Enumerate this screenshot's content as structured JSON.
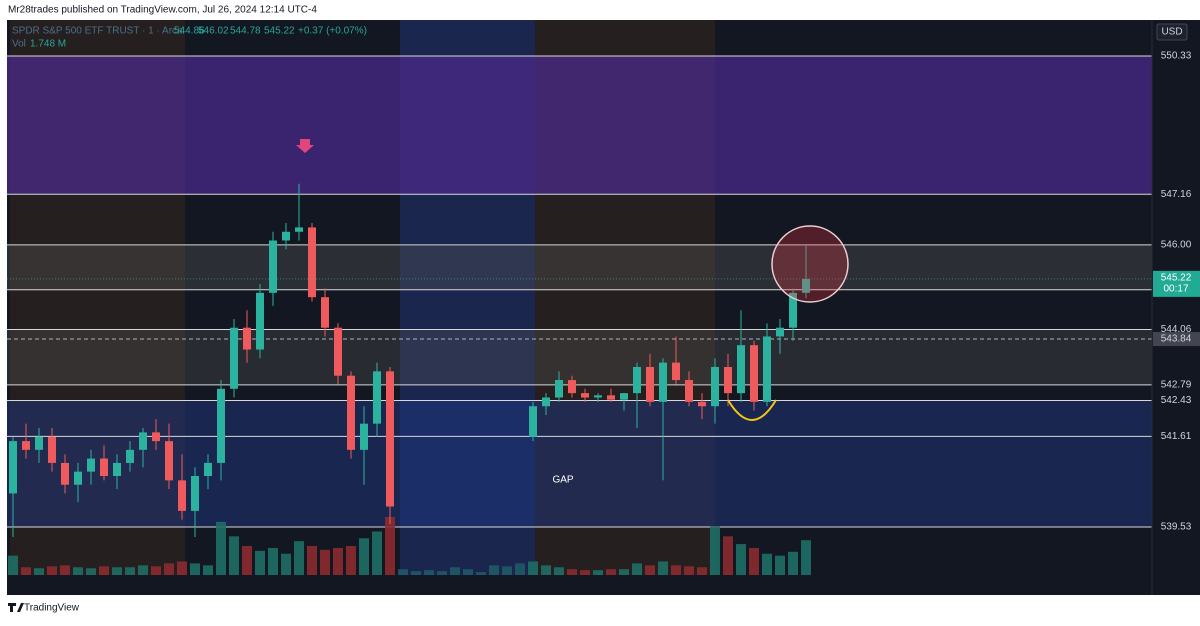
{
  "header": {
    "publisher": "Mr28trades published on TradingView.com, Jul 26, 2024 12:14 UTC-4"
  },
  "chart_data": {
    "type": "candlestick",
    "symbol": "SPDR S&P 500 ETF TRUST · 1 · Arca",
    "ohlc_values": [
      544.86,
      546.02,
      544.78,
      545.22
    ],
    "change": "+0.37 (+0.07%)",
    "volume_label": "Vol",
    "volume_total": "1.748 M",
    "currency": "USD",
    "open": [
      540.3,
      541.5,
      541.3,
      541.6,
      541.0,
      540.5,
      540.8,
      541.1,
      540.7,
      541.0,
      541.3,
      541.7,
      541.5,
      540.6,
      539.9,
      540.7,
      541.0,
      542.7,
      544.1,
      543.6,
      544.9,
      546.1,
      546.3,
      546.4,
      544.8,
      544.1,
      543.0,
      541.3,
      541.9,
      543.1,
      null,
      null,
      null,
      null,
      null,
      null,
      null,
      null,
      null,
      null,
      541.6,
      542.3,
      542.5,
      542.9,
      542.6,
      542.5,
      542.55,
      542.45,
      542.6,
      543.2,
      542.4,
      543.3,
      542.9,
      542.4,
      542.3,
      543.2,
      542.6,
      543.7,
      542.4,
      543.9,
      544.1,
      544.9
    ],
    "high": [
      541.6,
      541.9,
      541.8,
      541.8,
      541.2,
      541.0,
      541.3,
      541.4,
      541.2,
      541.5,
      541.8,
      542.0,
      541.9,
      541.2,
      540.9,
      541.2,
      542.9,
      544.3,
      544.5,
      545.1,
      546.3,
      546.5,
      547.4,
      546.5,
      545.0,
      544.2,
      543.1,
      542.3,
      543.3,
      543.2,
      null,
      null,
      null,
      null,
      null,
      null,
      null,
      null,
      null,
      null,
      542.4,
      542.6,
      543.1,
      543.0,
      542.7,
      542.6,
      542.7,
      542.6,
      543.3,
      543.5,
      543.4,
      543.9,
      543.1,
      542.6,
      543.4,
      543.5,
      544.5,
      543.8,
      544.2,
      544.3,
      545.0,
      546.0
    ],
    "low": [
      539.3,
      541.1,
      541.0,
      540.8,
      540.3,
      540.1,
      540.5,
      540.6,
      540.4,
      540.8,
      540.9,
      541.3,
      540.4,
      539.7,
      539.3,
      540.4,
      540.6,
      542.5,
      543.3,
      543.4,
      544.6,
      545.9,
      546.1,
      544.7,
      543.9,
      542.8,
      541.1,
      540.5,
      541.6,
      539.6,
      null,
      null,
      null,
      null,
      null,
      null,
      null,
      null,
      null,
      null,
      541.5,
      542.1,
      542.4,
      542.5,
      542.4,
      542.4,
      542.4,
      542.2,
      541.8,
      542.3,
      540.6,
      542.8,
      542.3,
      542.0,
      541.9,
      542.3,
      542.4,
      542.2,
      542.3,
      543.5,
      543.8,
      544.78
    ],
    "close": [
      541.5,
      541.3,
      541.6,
      541.0,
      540.5,
      540.8,
      541.1,
      540.7,
      541.0,
      541.3,
      541.7,
      541.5,
      540.6,
      539.9,
      540.7,
      541.0,
      542.7,
      544.1,
      543.6,
      544.9,
      546.1,
      546.3,
      546.4,
      544.8,
      544.1,
      543.0,
      541.3,
      541.9,
      543.1,
      540.0,
      null,
      null,
      null,
      null,
      null,
      null,
      null,
      null,
      null,
      null,
      542.3,
      542.5,
      542.9,
      542.6,
      542.5,
      542.55,
      542.45,
      542.6,
      543.2,
      542.4,
      543.3,
      542.9,
      542.4,
      542.3,
      543.2,
      542.6,
      543.7,
      542.4,
      543.9,
      544.1,
      544.9,
      545.22
    ],
    "volume": [
      20,
      8,
      7,
      9,
      10,
      8,
      7,
      9,
      8,
      8,
      10,
      9,
      12,
      14,
      12,
      10,
      55,
      40,
      30,
      25,
      28,
      22,
      35,
      30,
      26,
      28,
      30,
      38,
      45,
      60,
      6,
      4,
      5,
      4,
      8,
      6,
      3,
      10,
      9,
      12,
      14,
      10,
      8,
      6,
      5,
      5,
      6,
      6,
      12,
      10,
      14,
      10,
      9,
      8,
      50,
      40,
      32,
      28,
      22,
      20,
      24,
      36
    ],
    "ylim": [
      538.43,
      551.11
    ],
    "levels": [
      550.33,
      547.16,
      {
        "value": 546.0,
        "label": "546.00"
      },
      544.97,
      544.06,
      542.79,
      542.43,
      541.61,
      539.53
    ],
    "last_price": {
      "value": 545.22,
      "countdown": "00:17"
    },
    "dashed_level": 543.84,
    "annotation": "GAP",
    "up_color": "#2bb3a0",
    "down_color": "#ef5a5c"
  },
  "footer": {
    "brand": "TradingView"
  }
}
